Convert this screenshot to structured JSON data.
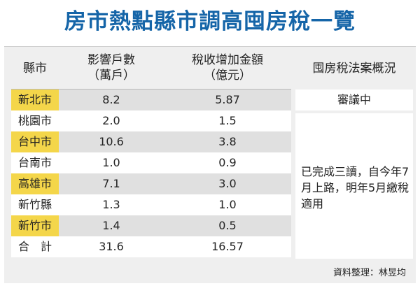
{
  "title": "房市熱點縣市調高囤房稅一覽",
  "headers": {
    "city": "縣市",
    "households_line1": "影響戶數",
    "households_line2": "（萬戶）",
    "tax_line1": "稅收增加金額",
    "tax_line2": "（億元）",
    "status": "囤房稅法案概況"
  },
  "rows": [
    {
      "city": "新北市",
      "households": "8.2",
      "tax": "5.87"
    },
    {
      "city": "桃園市",
      "households": "2.0",
      "tax": "1.5"
    },
    {
      "city": "台中市",
      "households": "10.6",
      "tax": "3.8"
    },
    {
      "city": "台南市",
      "households": "1.0",
      "tax": "0.9"
    },
    {
      "city": "高雄市",
      "households": "7.1",
      "tax": "3.0"
    },
    {
      "city": "新竹縣",
      "households": "1.3",
      "tax": "1.0"
    },
    {
      "city": "新竹市",
      "households": "1.4",
      "tax": "0.5"
    },
    {
      "city": "合　計",
      "households": "31.6",
      "tax": "16.57"
    }
  ],
  "status": {
    "first": "審議中",
    "rest": "已完成三讀，自今年7月上路，明年5月繳稅適用"
  },
  "source": "資料整理：林昱均",
  "colors": {
    "title": "#1565a8",
    "highlight": "#f4d64a",
    "panel": "#efefef",
    "stripe": "#e0e0e0"
  }
}
